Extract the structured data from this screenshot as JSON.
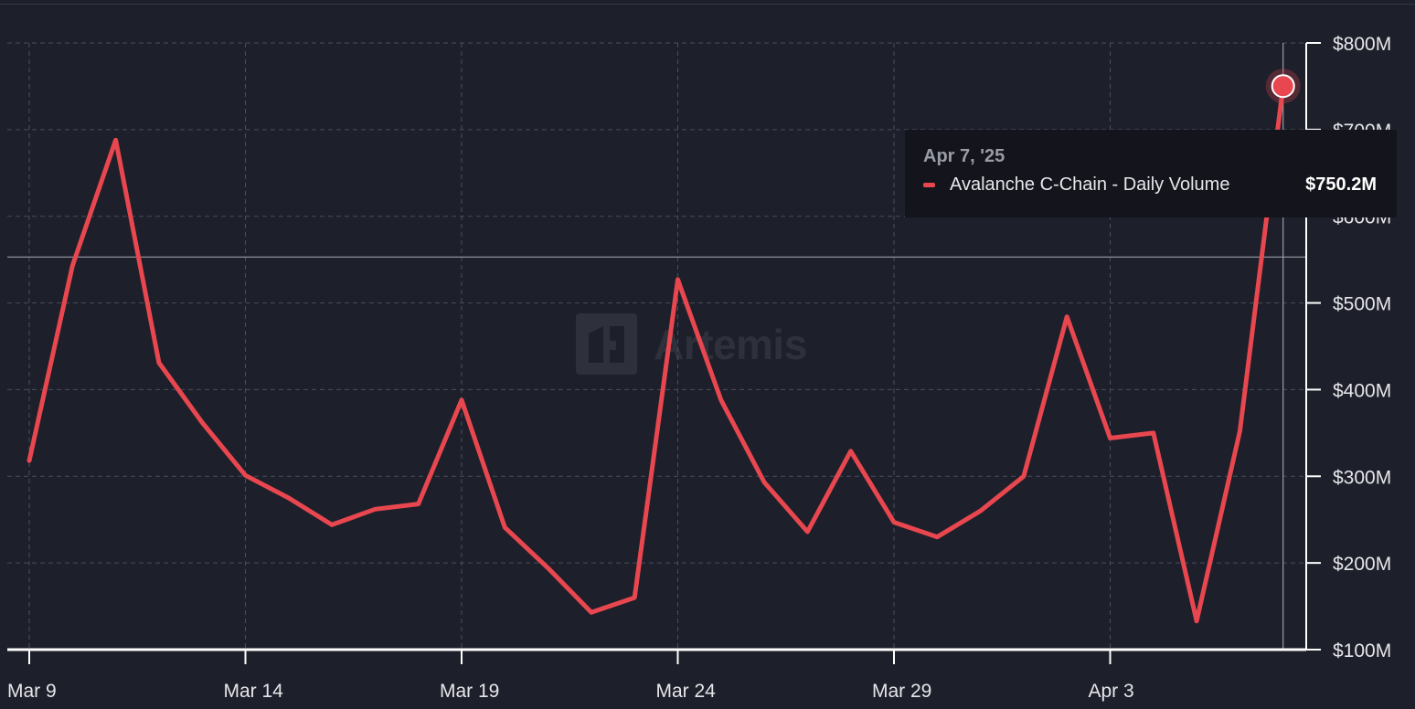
{
  "chart_data": {
    "type": "line",
    "title": "",
    "xlabel": "",
    "ylabel": "",
    "x": [
      "Mar 9",
      "Mar 10",
      "Mar 11",
      "Mar 12",
      "Mar 13",
      "Mar 14",
      "Mar 15",
      "Mar 16",
      "Mar 17",
      "Mar 18",
      "Mar 19",
      "Mar 20",
      "Mar 21",
      "Mar 22",
      "Mar 23",
      "Mar 24",
      "Mar 25",
      "Mar 26",
      "Mar 27",
      "Mar 28",
      "Mar 29",
      "Mar 30",
      "Mar 31",
      "Apr 1",
      "Apr 2",
      "Apr 3",
      "Apr 4",
      "Apr 5",
      "Apr 6",
      "Apr 7"
    ],
    "x_tick_labels": [
      "Mar 9",
      "Mar 14",
      "Mar 19",
      "Mar 24",
      "Mar 29",
      "Apr 3"
    ],
    "y_tick_labels": [
      "$100M",
      "$200M",
      "$300M",
      "$400M",
      "$500M",
      "$600M",
      "$700M",
      "$800M"
    ],
    "y_ticks": [
      100,
      200,
      300,
      400,
      500,
      600,
      700,
      800
    ],
    "ylim": [
      100,
      800
    ],
    "y_unit": "$M",
    "y_axis_side": "right",
    "grid": true,
    "series": [
      {
        "name": "Avalanche C-Chain - Daily Volume",
        "color": "#e8474f",
        "values": [
          318,
          543,
          688,
          431,
          362,
          301,
          275,
          244,
          262,
          268,
          388,
          241,
          194,
          143,
          160,
          527,
          388,
          293,
          236,
          329,
          247,
          230,
          260,
          300,
          484,
          344,
          350,
          133,
          352,
          750.2
        ]
      }
    ],
    "crosshair_y": 553,
    "highlight_index": 29
  },
  "tooltip": {
    "date": "Apr 7, '25",
    "series_label": "Avalanche C-Chain - Daily Volume",
    "value": "$750.2M"
  },
  "watermark": {
    "text": "Artemis"
  }
}
